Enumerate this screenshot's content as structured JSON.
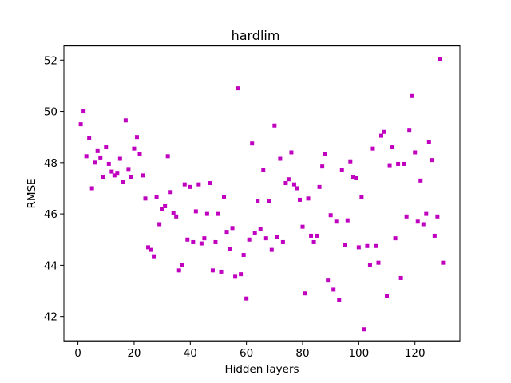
{
  "chart_data": {
    "type": "scatter",
    "title": "hardlim",
    "xlabel": "Hidden layers",
    "ylabel": "RMSE",
    "xlim": [
      -5,
      136
    ],
    "ylim": [
      41.05,
      52.55
    ],
    "xticks": [
      "0",
      "20",
      "40",
      "60",
      "80",
      "100",
      "120"
    ],
    "yticks": [
      "42",
      "44",
      "46",
      "48",
      "50",
      "52"
    ],
    "grid": false,
    "marker_color": "#bf00bf",
    "series": [
      {
        "x": [
          1,
          2,
          3,
          4,
          5,
          6,
          7,
          8,
          9,
          10,
          11,
          12,
          13,
          14,
          15,
          16,
          17,
          18,
          19,
          20,
          21,
          22,
          23,
          24,
          25,
          26,
          27,
          28,
          29,
          30,
          31,
          32,
          33,
          34,
          35,
          36,
          37,
          38,
          39,
          40,
          41,
          42,
          43,
          44,
          45,
          46,
          47,
          48,
          49,
          50,
          51,
          52,
          53,
          54,
          55,
          56,
          57,
          58,
          59,
          60,
          61,
          62,
          63,
          64,
          65,
          66,
          67,
          68,
          69,
          70,
          71,
          72,
          73,
          74,
          75,
          76,
          77,
          78,
          79,
          80,
          81,
          82,
          83,
          84,
          85,
          86,
          87,
          88,
          89,
          90,
          91,
          92,
          93,
          94,
          95,
          96,
          97,
          98,
          99,
          100,
          101,
          102,
          103,
          104,
          105,
          106,
          107,
          108,
          109,
          110,
          111,
          112,
          113,
          114,
          115,
          116,
          117,
          118,
          119,
          120,
          121,
          122,
          123,
          124,
          125,
          126,
          127,
          128,
          129,
          130
        ],
        "y": [
          49.5,
          50.0,
          48.25,
          48.95,
          47.0,
          48.0,
          48.45,
          48.2,
          47.45,
          48.6,
          47.95,
          47.65,
          47.5,
          47.6,
          48.15,
          47.25,
          49.65,
          47.75,
          47.45,
          48.55,
          49.0,
          48.35,
          47.5,
          46.6,
          44.7,
          44.6,
          44.35,
          46.65,
          45.6,
          46.2,
          46.3,
          48.25,
          46.85,
          46.05,
          45.9,
          43.8,
          44.0,
          47.15,
          45.0,
          47.05,
          44.9,
          46.1,
          47.15,
          44.85,
          45.05,
          46.0,
          47.2,
          43.8,
          44.9,
          46.0,
          43.75,
          46.65,
          45.3,
          44.65,
          45.45,
          43.55,
          50.9,
          43.65,
          44.4,
          42.7,
          45.0,
          48.75,
          45.25,
          46.5,
          45.4,
          47.7,
          45.05,
          46.5,
          44.6,
          49.45,
          45.1,
          48.15,
          44.9,
          47.2,
          47.35,
          48.4,
          47.15,
          47.0,
          46.55,
          45.5,
          42.9,
          46.6,
          45.15,
          44.9,
          45.15,
          47.05,
          47.85,
          48.35,
          43.4,
          45.95,
          43.05,
          45.7,
          42.65,
          47.7,
          44.8,
          45.75,
          48.05,
          47.45,
          47.4,
          44.7,
          46.65,
          41.5,
          44.75,
          44.0,
          48.55,
          44.75,
          44.1,
          49.05,
          49.2,
          42.8,
          47.9,
          48.6,
          45.05,
          47.95,
          43.5,
          47.95,
          45.9,
          49.25,
          50.6,
          48.4,
          45.7,
          47.3,
          45.6,
          46.0,
          48.8,
          48.1,
          45.15,
          45.9,
          52.05,
          44.1
        ]
      }
    ]
  }
}
